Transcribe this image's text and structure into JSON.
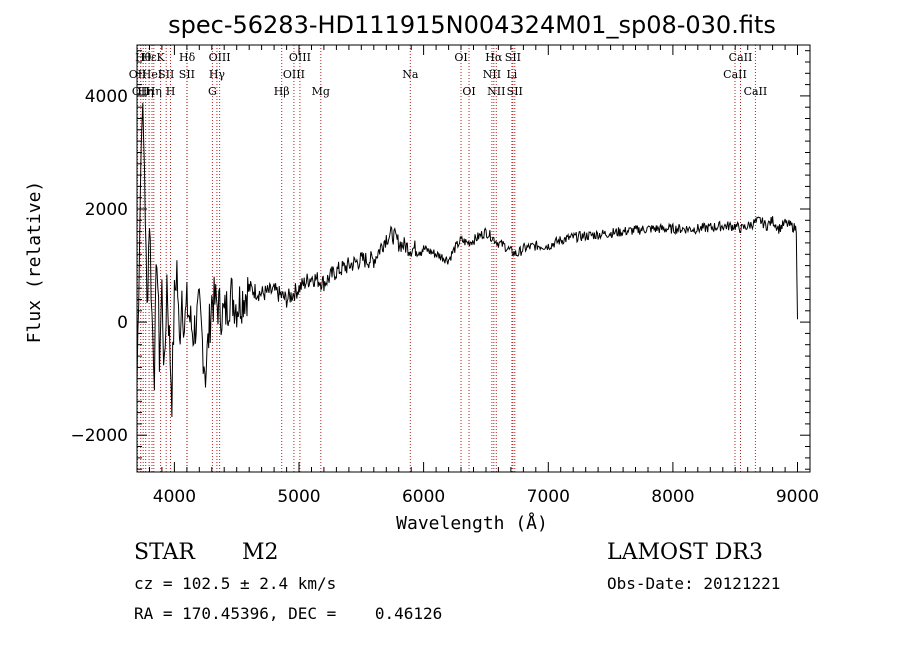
{
  "chart_data": {
    "type": "line",
    "title": "spec-56283-HD111915N004324M01_sp08-030.fits",
    "xlabel": "Wavelength (Å)",
    "ylabel": "Flux (relative)",
    "xlim": [
      3700,
      9100
    ],
    "ylim": [
      -2650,
      4900
    ],
    "x_ticks": [
      4000,
      5000,
      6000,
      7000,
      8000,
      9000
    ],
    "y_ticks": [
      -2000,
      0,
      2000,
      4000
    ],
    "grid": false,
    "line_color": "#000000",
    "marker_color": "#b22222",
    "series": [
      {
        "x": [
          3700,
          3720,
          3740,
          3760,
          3780,
          3800,
          3820,
          3840,
          3860,
          3880,
          3900,
          3920,
          3940,
          3960,
          3980,
          4000,
          4020,
          4040,
          4060,
          4080,
          4100,
          4150,
          4200,
          4250,
          4300,
          4350,
          4400,
          4450,
          4500,
          4600,
          4700,
          4800,
          4900,
          5000,
          5100,
          5200,
          5300,
          5400,
          5500,
          5600,
          5700,
          5750,
          5800,
          5850,
          5900,
          6000,
          6100,
          6200,
          6250,
          6300,
          6350,
          6400,
          6500,
          6550,
          6600,
          6650,
          6700,
          6750,
          6800,
          6900,
          7000,
          7100,
          7200,
          7400,
          7600,
          7800,
          8000,
          8200,
          8400,
          8500,
          8550,
          8600,
          8650,
          8700,
          8750,
          8800,
          8850,
          8900,
          8950,
          8990,
          9000
        ],
        "y": [
          -1100,
          1500,
          3900,
          2800,
          200,
          1900,
          100,
          -800,
          1300,
          -600,
          600,
          -1000,
          800,
          -300,
          -1300,
          400,
          1000,
          -400,
          600,
          -100,
          300,
          -200,
          200,
          -900,
          400,
          300,
          100,
          500,
          300,
          600,
          500,
          550,
          400,
          600,
          800,
          700,
          900,
          1000,
          1100,
          1100,
          1500,
          1550,
          1400,
          1350,
          1300,
          1300,
          1200,
          1100,
          1300,
          1450,
          1400,
          1450,
          1600,
          1500,
          1400,
          1350,
          1250,
          1200,
          1300,
          1350,
          1350,
          1450,
          1500,
          1550,
          1600,
          1650,
          1650,
          1650,
          1700,
          1700,
          1650,
          1700,
          1750,
          1800,
          1700,
          1800,
          1650,
          1750,
          1700,
          1650,
          50
        ]
      }
    ],
    "line_markers": [
      {
        "x": 3705,
        "label": "OII",
        "row": 2
      },
      {
        "x": 3730,
        "label": "OII",
        "row": 3
      },
      {
        "x": 3750,
        "label": "Hθ",
        "row": 1
      },
      {
        "x": 3770,
        "label": "Hη",
        "row": 3
      },
      {
        "x": 3797,
        "label": "Hε",
        "row": 1
      },
      {
        "x": 3820,
        "label": "HeI",
        "row": 2
      },
      {
        "x": 3835,
        "label": "Hη",
        "row": 3
      },
      {
        "x": 3889,
        "label": "K",
        "row": 1
      },
      {
        "x": 3934,
        "label": "SII",
        "row": 2
      },
      {
        "x": 3969,
        "label": "H",
        "row": 3
      },
      {
        "x": 4102,
        "label": "Hδ",
        "row": 1
      },
      {
        "x": 4100,
        "label": "SII",
        "row": 2
      },
      {
        "x": 4305,
        "label": "G",
        "row": 3
      },
      {
        "x": 4341,
        "label": "Hγ",
        "row": 2
      },
      {
        "x": 4363,
        "label": "OIII",
        "row": 1
      },
      {
        "x": 4861,
        "label": "Hβ",
        "row": 3
      },
      {
        "x": 4959,
        "label": "OIII",
        "row": 2
      },
      {
        "x": 5007,
        "label": "OIII",
        "row": 1
      },
      {
        "x": 5175,
        "label": "Mg",
        "row": 3
      },
      {
        "x": 5893,
        "label": "Na",
        "row": 2
      },
      {
        "x": 6300,
        "label": "OI",
        "row": 1
      },
      {
        "x": 6364,
        "label": "OI",
        "row": 3
      },
      {
        "x": 6548,
        "label": "NII",
        "row": 2
      },
      {
        "x": 6563,
        "label": "Hα",
        "row": 1
      },
      {
        "x": 6583,
        "label": "NII",
        "row": 3
      },
      {
        "x": 6708,
        "label": "Li",
        "row": 2
      },
      {
        "x": 6716,
        "label": "SII",
        "row": 1
      },
      {
        "x": 6731,
        "label": "SII",
        "row": 3
      },
      {
        "x": 8498,
        "label": "CaII",
        "row": 2
      },
      {
        "x": 8542,
        "label": "CaII",
        "row": 1
      },
      {
        "x": 8662,
        "label": "CaII",
        "row": 3
      }
    ]
  },
  "info": {
    "object_class": "STAR",
    "subclass": "M2",
    "survey": "LAMOST DR3",
    "cz": "cz = 102.5 ± 2.4 km/s",
    "obs_date": "Obs-Date: 20121221",
    "coords": "RA = 170.45396, DEC =    0.46126"
  }
}
